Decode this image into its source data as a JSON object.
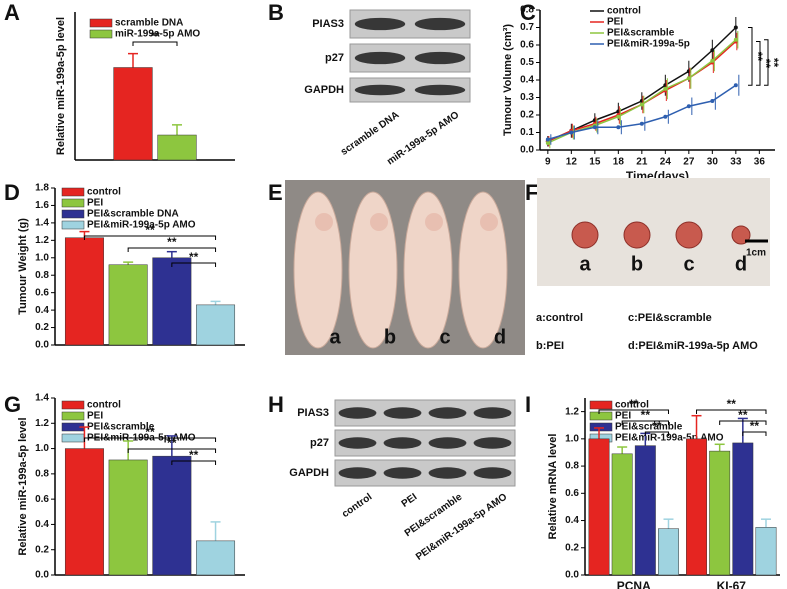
{
  "chart_data": [
    {
      "type": "bar",
      "panel": "A",
      "y_label": "Relative miR-199a-5p level",
      "categories": [
        null
      ],
      "series": [
        {
          "name": "scramble DNA",
          "color": "#e52521",
          "values": [
            1.0
          ],
          "errors": [
            0.15
          ]
        },
        {
          "name": "miR-199a-5p AMO",
          "color": "#8dc63f",
          "values": [
            0.27
          ],
          "errors": [
            0.11
          ]
        }
      ],
      "ylim": [
        0,
        1.6
      ],
      "annotations": [
        "**"
      ]
    },
    {
      "type": "line",
      "panel": "C",
      "y_label": "Tumour Volume (cm³)",
      "x_label": "Time(days)",
      "x": [
        9,
        12,
        15,
        18,
        21,
        24,
        27,
        30,
        33
      ],
      "series": [
        {
          "name": "control",
          "color": "#111111",
          "values": [
            0.05,
            0.11,
            0.17,
            0.22,
            0.28,
            0.37,
            0.45,
            0.57,
            0.7
          ],
          "errors": [
            0.03,
            0.04,
            0.04,
            0.05,
            0.05,
            0.06,
            0.06,
            0.06,
            0.06
          ]
        },
        {
          "name": "PEI",
          "color": "#e52521",
          "values": [
            0.05,
            0.11,
            0.15,
            0.2,
            0.26,
            0.34,
            0.41,
            0.5,
            0.62
          ],
          "errors": [
            0.03,
            0.04,
            0.04,
            0.05,
            0.05,
            0.06,
            0.06,
            0.06,
            0.05
          ]
        },
        {
          "name": "PEI&scramble",
          "color": "#8dc63f",
          "values": [
            0.04,
            0.1,
            0.14,
            0.19,
            0.26,
            0.35,
            0.41,
            0.51,
            0.63
          ],
          "errors": [
            0.03,
            0.04,
            0.04,
            0.05,
            0.05,
            0.06,
            0.06,
            0.06,
            0.05
          ]
        },
        {
          "name": "PEI&miR-199a-5p",
          "color": "#2e5fb0",
          "values": [
            0.06,
            0.1,
            0.13,
            0.13,
            0.15,
            0.19,
            0.25,
            0.28,
            0.37
          ],
          "errors": [
            0.03,
            0.04,
            0.04,
            0.04,
            0.04,
            0.04,
            0.05,
            0.05,
            0.06
          ]
        }
      ],
      "xlim": [
        8,
        38
      ],
      "xticks": [
        9,
        12,
        15,
        18,
        21,
        24,
        27,
        30,
        33,
        36
      ],
      "ylim": [
        0,
        0.8
      ],
      "yticks": [
        {
          "value": 0,
          "label": "0.0"
        },
        0.1,
        0.2,
        0.3,
        0.4,
        0.5,
        0.6,
        0.7,
        0.8
      ],
      "annotations": [
        "**",
        "**",
        "**"
      ]
    },
    {
      "type": "bar",
      "panel": "D",
      "y_label": "Tumour Weight (g)",
      "categories": [
        null
      ],
      "series": [
        {
          "name": "control",
          "color": "#e52521",
          "values": [
            1.23
          ],
          "errors": [
            0.07
          ]
        },
        {
          "name": "PEI",
          "color": "#8dc63f",
          "values": [
            0.92
          ],
          "errors": [
            0.03
          ]
        },
        {
          "name": "PEI&scramble DNA",
          "color": "#2e3192",
          "values": [
            1.0
          ],
          "errors": [
            0.07
          ]
        },
        {
          "name": "PEI&miR-199a-5p AMO",
          "color": "#9fd3e0",
          "values": [
            0.46
          ],
          "errors": [
            0.04
          ]
        }
      ],
      "ylim": [
        0,
        1.8
      ],
      "yticks": [
        {
          "value": 0,
          "label": "0.0"
        },
        0.2,
        0.4,
        0.6,
        0.8,
        {
          "value": 1,
          "label": "1.0"
        },
        1.2,
        1.4,
        1.6,
        1.8
      ],
      "annotations": [
        "**",
        "**",
        "**"
      ]
    },
    {
      "type": "bar",
      "panel": "G",
      "y_label": "Relative miR-199a-5p level",
      "categories": [
        null
      ],
      "series": [
        {
          "name": "control",
          "color": "#e52521",
          "values": [
            1.0
          ],
          "errors": [
            0.17
          ]
        },
        {
          "name": "PEI",
          "color": "#8dc63f",
          "values": [
            0.91
          ],
          "errors": [
            0.15
          ]
        },
        {
          "name": "PEI&scramble",
          "color": "#2e3192",
          "values": [
            0.94
          ],
          "errors": [
            0.16
          ]
        },
        {
          "name": "PEI&miR-199a-5p AMO",
          "color": "#9fd3e0",
          "values": [
            0.27
          ],
          "errors": [
            0.15
          ]
        }
      ],
      "ylim": [
        0,
        1.4
      ],
      "yticks": [
        {
          "value": 0,
          "label": "0.0"
        },
        0.2,
        0.4,
        0.6,
        0.8,
        {
          "value": 1,
          "label": "1.0"
        },
        1.2,
        1.4
      ],
      "annotations": [
        "**",
        "**",
        "**"
      ]
    },
    {
      "type": "bar",
      "panel": "I",
      "y_label": "Relative mRNA level",
      "categories": [
        "PCNA",
        "KI-67"
      ],
      "series": [
        {
          "name": "control",
          "color": "#e52521",
          "values": [
            1.0,
            1.0
          ],
          "errors": [
            0.08,
            0.17
          ]
        },
        {
          "name": "PEI",
          "color": "#8dc63f",
          "values": [
            0.89,
            0.91
          ],
          "errors": [
            0.05,
            0.05
          ]
        },
        {
          "name": "PEI&scramble",
          "color": "#2e3192",
          "values": [
            0.95,
            0.97
          ],
          "errors": [
            0.09,
            0.18
          ]
        },
        {
          "name": "PEI&miR-199a-5p AMO",
          "color": "#9fd3e0",
          "values": [
            0.34,
            0.35
          ],
          "errors": [
            0.07,
            0.06
          ]
        }
      ],
      "ylim": [
        0,
        1.3
      ],
      "yticks": [
        {
          "value": 0,
          "label": "0.0"
        },
        0.2,
        0.4,
        0.6,
        0.8,
        {
          "value": 1,
          "label": "1.0"
        },
        1.2
      ],
      "annotations": [
        "**",
        "**",
        "**",
        "**",
        "**",
        "**"
      ]
    }
  ],
  "blots": [
    {
      "panel": "B",
      "rows": [
        "PIAS3",
        "p27",
        "GAPDH"
      ],
      "lanes": [
        "scramble DNA",
        "miR-199a-5p AMO"
      ]
    },
    {
      "panel": "H",
      "rows": [
        "PIAS3",
        "p27",
        "GAPDH"
      ],
      "lanes": [
        "control",
        "PEI",
        "PEI&scramble",
        "PEI&miR-199a-5p AMO"
      ]
    }
  ],
  "photos": [
    {
      "panel": "E",
      "labels": [
        "a",
        "b",
        "c",
        "d"
      ]
    },
    {
      "panel": "F",
      "labels": [
        "a",
        "b",
        "c",
        "d"
      ],
      "scale": "1cm",
      "key": [
        "a:control",
        "c:PEI&scramble",
        "b:PEI",
        "d:PEI&miR-199a-5p AMO"
      ]
    }
  ]
}
